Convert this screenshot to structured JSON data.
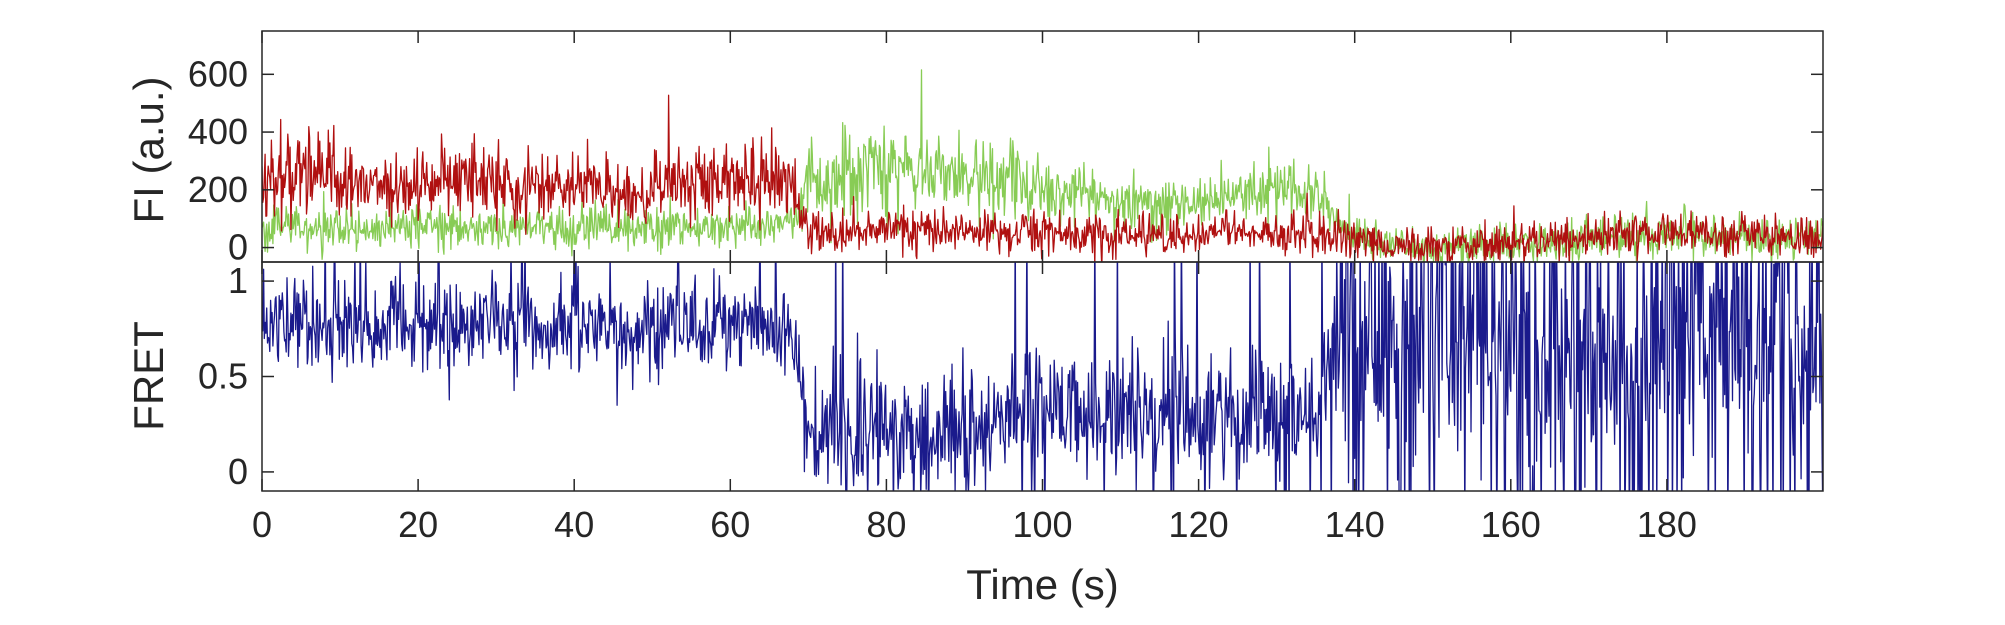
{
  "chart_data": [
    {
      "type": "line",
      "ylabel": "FI (a.u.)",
      "xlim": [
        0,
        200
      ],
      "ylim": [
        -50,
        750
      ],
      "yticks": [
        0,
        200,
        400,
        600
      ],
      "grid": false,
      "series": [
        {
          "color": "#88cc55",
          "x": [
            0,
            5,
            10,
            15,
            20,
            25,
            30,
            35,
            40,
            45,
            50,
            55,
            60,
            65,
            68,
            70,
            75,
            80,
            85,
            90,
            95,
            100,
            105,
            110,
            115,
            120,
            125,
            130,
            135,
            137,
            140,
            145,
            150,
            155,
            160,
            165,
            170,
            175,
            180,
            185,
            190,
            195,
            200
          ],
          "y": [
            60,
            80,
            50,
            60,
            70,
            75,
            60,
            70,
            65,
            70,
            60,
            75,
            70,
            80,
            90,
            220,
            270,
            300,
            260,
            250,
            230,
            200,
            180,
            170,
            150,
            170,
            180,
            200,
            190,
            120,
            40,
            10,
            0,
            5,
            10,
            20,
            30,
            40,
            50,
            40,
            45,
            35,
            40
          ]
        },
        {
          "color": "#b01010",
          "x": [
            0,
            5,
            10,
            15,
            20,
            25,
            30,
            35,
            40,
            45,
            50,
            55,
            60,
            65,
            68,
            70,
            75,
            80,
            85,
            90,
            95,
            100,
            105,
            110,
            115,
            120,
            125,
            130,
            135,
            137,
            140,
            145,
            150,
            155,
            160,
            165,
            170,
            175,
            180,
            185,
            190,
            195,
            200
          ],
          "y": [
            230,
            290,
            230,
            200,
            210,
            240,
            230,
            210,
            205,
            200,
            195,
            230,
            240,
            230,
            200,
            60,
            50,
            70,
            60,
            55,
            60,
            50,
            40,
            45,
            35,
            40,
            60,
            50,
            40,
            30,
            20,
            5,
            10,
            10,
            20,
            30,
            30,
            40,
            50,
            45,
            40,
            40,
            35
          ]
        }
      ]
    },
    {
      "type": "line",
      "ylabel": "FRET",
      "xlabel": "Time (s)",
      "xlim": [
        0,
        200
      ],
      "ylim": [
        -0.1,
        1.1
      ],
      "xticks": [
        0,
        20,
        40,
        60,
        80,
        100,
        120,
        140,
        160,
        180
      ],
      "yticks": [
        0,
        0.5,
        1
      ],
      "ytick_labels": [
        "0",
        "0.5",
        "1"
      ],
      "grid": false,
      "series": [
        {
          "color": "#1a1a8c",
          "x": [
            0,
            5,
            10,
            15,
            20,
            25,
            30,
            35,
            40,
            45,
            50,
            55,
            60,
            65,
            68,
            70,
            75,
            80,
            85,
            90,
            95,
            100,
            105,
            110,
            115,
            120,
            125,
            130,
            135,
            137,
            140,
            145,
            150,
            155,
            160,
            165,
            170,
            175,
            180,
            185,
            190,
            195,
            200
          ],
          "y": [
            0.78,
            0.8,
            0.75,
            0.8,
            0.75,
            0.75,
            0.8,
            0.75,
            0.78,
            0.75,
            0.76,
            0.75,
            0.78,
            0.74,
            0.7,
            0.25,
            0.2,
            0.22,
            0.2,
            0.25,
            0.3,
            0.35,
            0.25,
            0.3,
            0.3,
            0.3,
            0.25,
            0.3,
            0.3,
            0.6,
            0.6,
            0.55,
            0.6,
            0.55,
            0.6,
            0.55,
            0.6,
            0.55,
            0.6,
            0.55,
            0.6,
            0.55,
            0.6
          ]
        }
      ]
    }
  ]
}
